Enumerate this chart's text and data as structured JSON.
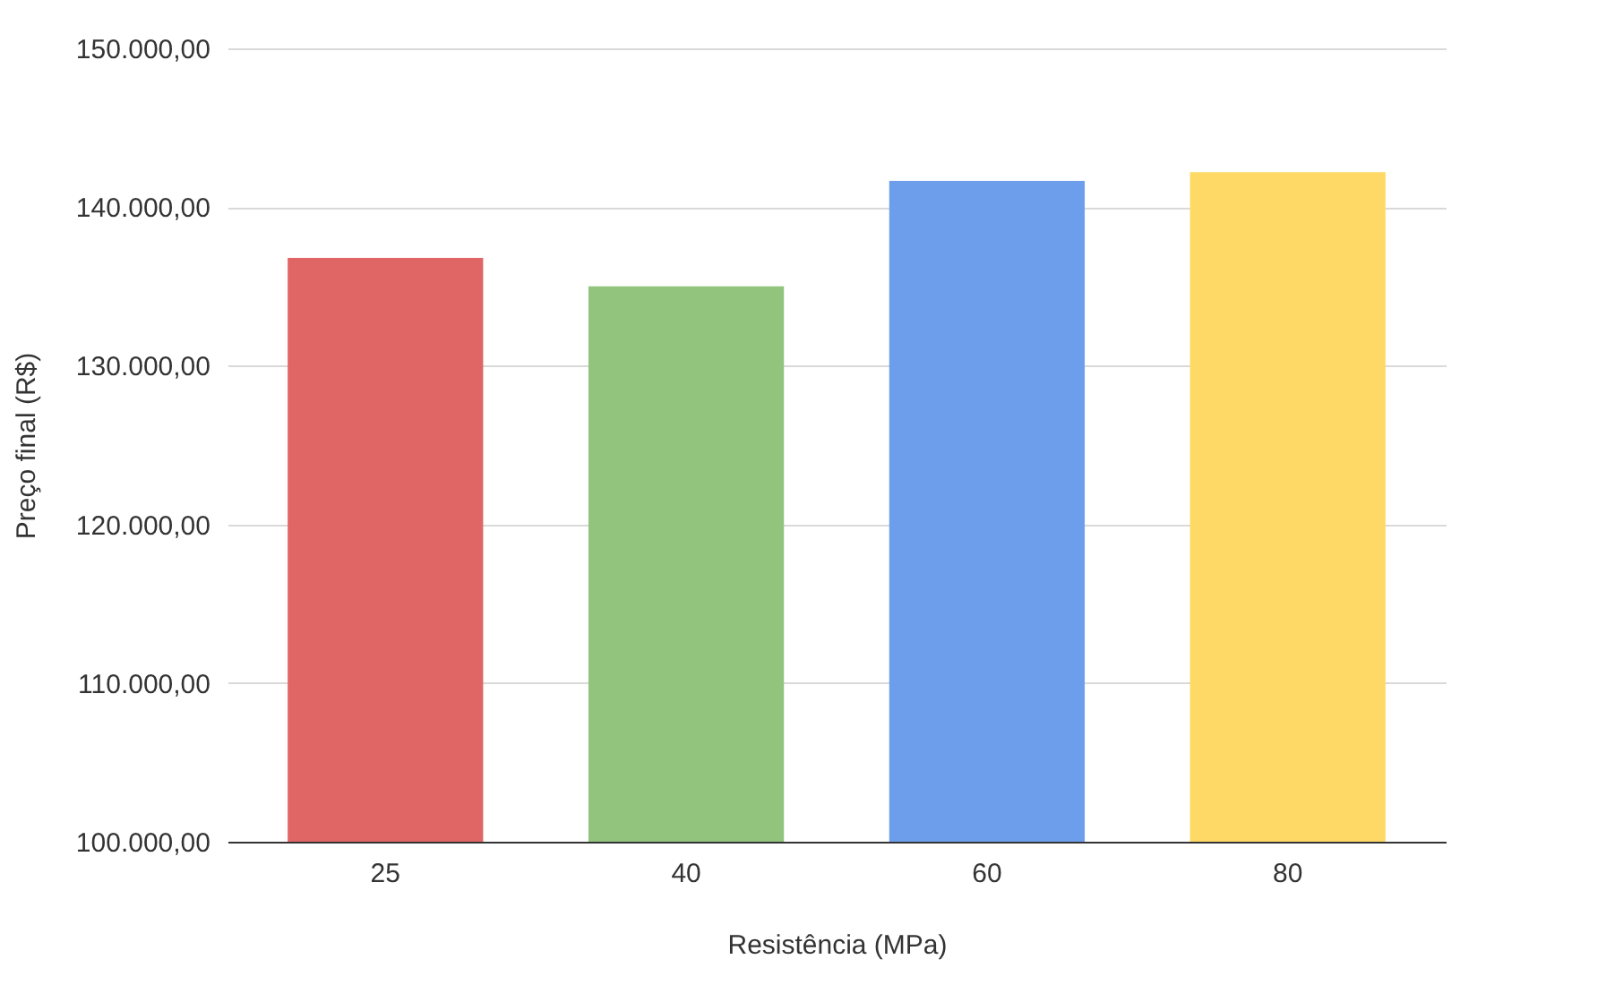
{
  "chart_data": {
    "type": "bar",
    "xlabel": "Resistência (MPa)",
    "ylabel": "Preço final (R$)",
    "categories": [
      "25",
      "40",
      "60",
      "80"
    ],
    "values": [
      136800,
      135000,
      141650,
      142200
    ],
    "colors": [
      "#e06666",
      "#93c47d",
      "#6d9eeb",
      "#ffd966"
    ],
    "ylim": [
      100000,
      150000
    ],
    "yticks": [
      {
        "value": 100000,
        "label": "100.000,00"
      },
      {
        "value": 110000,
        "label": "110.000,00"
      },
      {
        "value": 120000,
        "label": "120.000,00"
      },
      {
        "value": 130000,
        "label": "130.000,00"
      },
      {
        "value": 140000,
        "label": "140.000,00"
      },
      {
        "value": 150000,
        "label": "150.000,00"
      }
    ],
    "grid": "y"
  }
}
